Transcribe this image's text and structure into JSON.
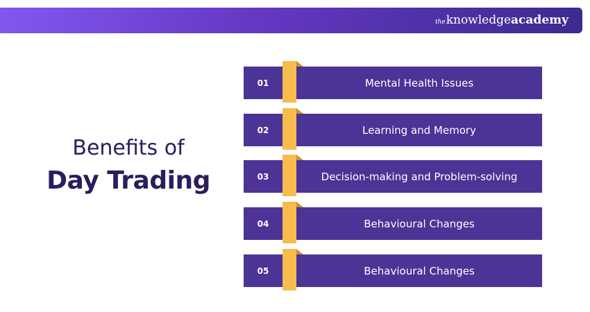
{
  "header": {
    "brand_prefix": "the",
    "brand_main": "knowledge",
    "brand_suffix": "academy"
  },
  "heading": {
    "line1": "Benefits of",
    "line2": "Day Trading"
  },
  "items": [
    {
      "number": "01",
      "label": "Mental Health Issues"
    },
    {
      "number": "02",
      "label": "Learning and Memory"
    },
    {
      "number": "03",
      "label": "Decision-making and Problem-solving"
    },
    {
      "number": "04",
      "label": "Behavioural Changes"
    },
    {
      "number": "05",
      "label": "Behavioural Changes"
    }
  ],
  "colors": {
    "banner_start": "#8257f0",
    "banner_end": "#3d2a8f",
    "box": "#4c3396",
    "accent": "#f8bb4e",
    "heading": "#2b1d5e"
  }
}
